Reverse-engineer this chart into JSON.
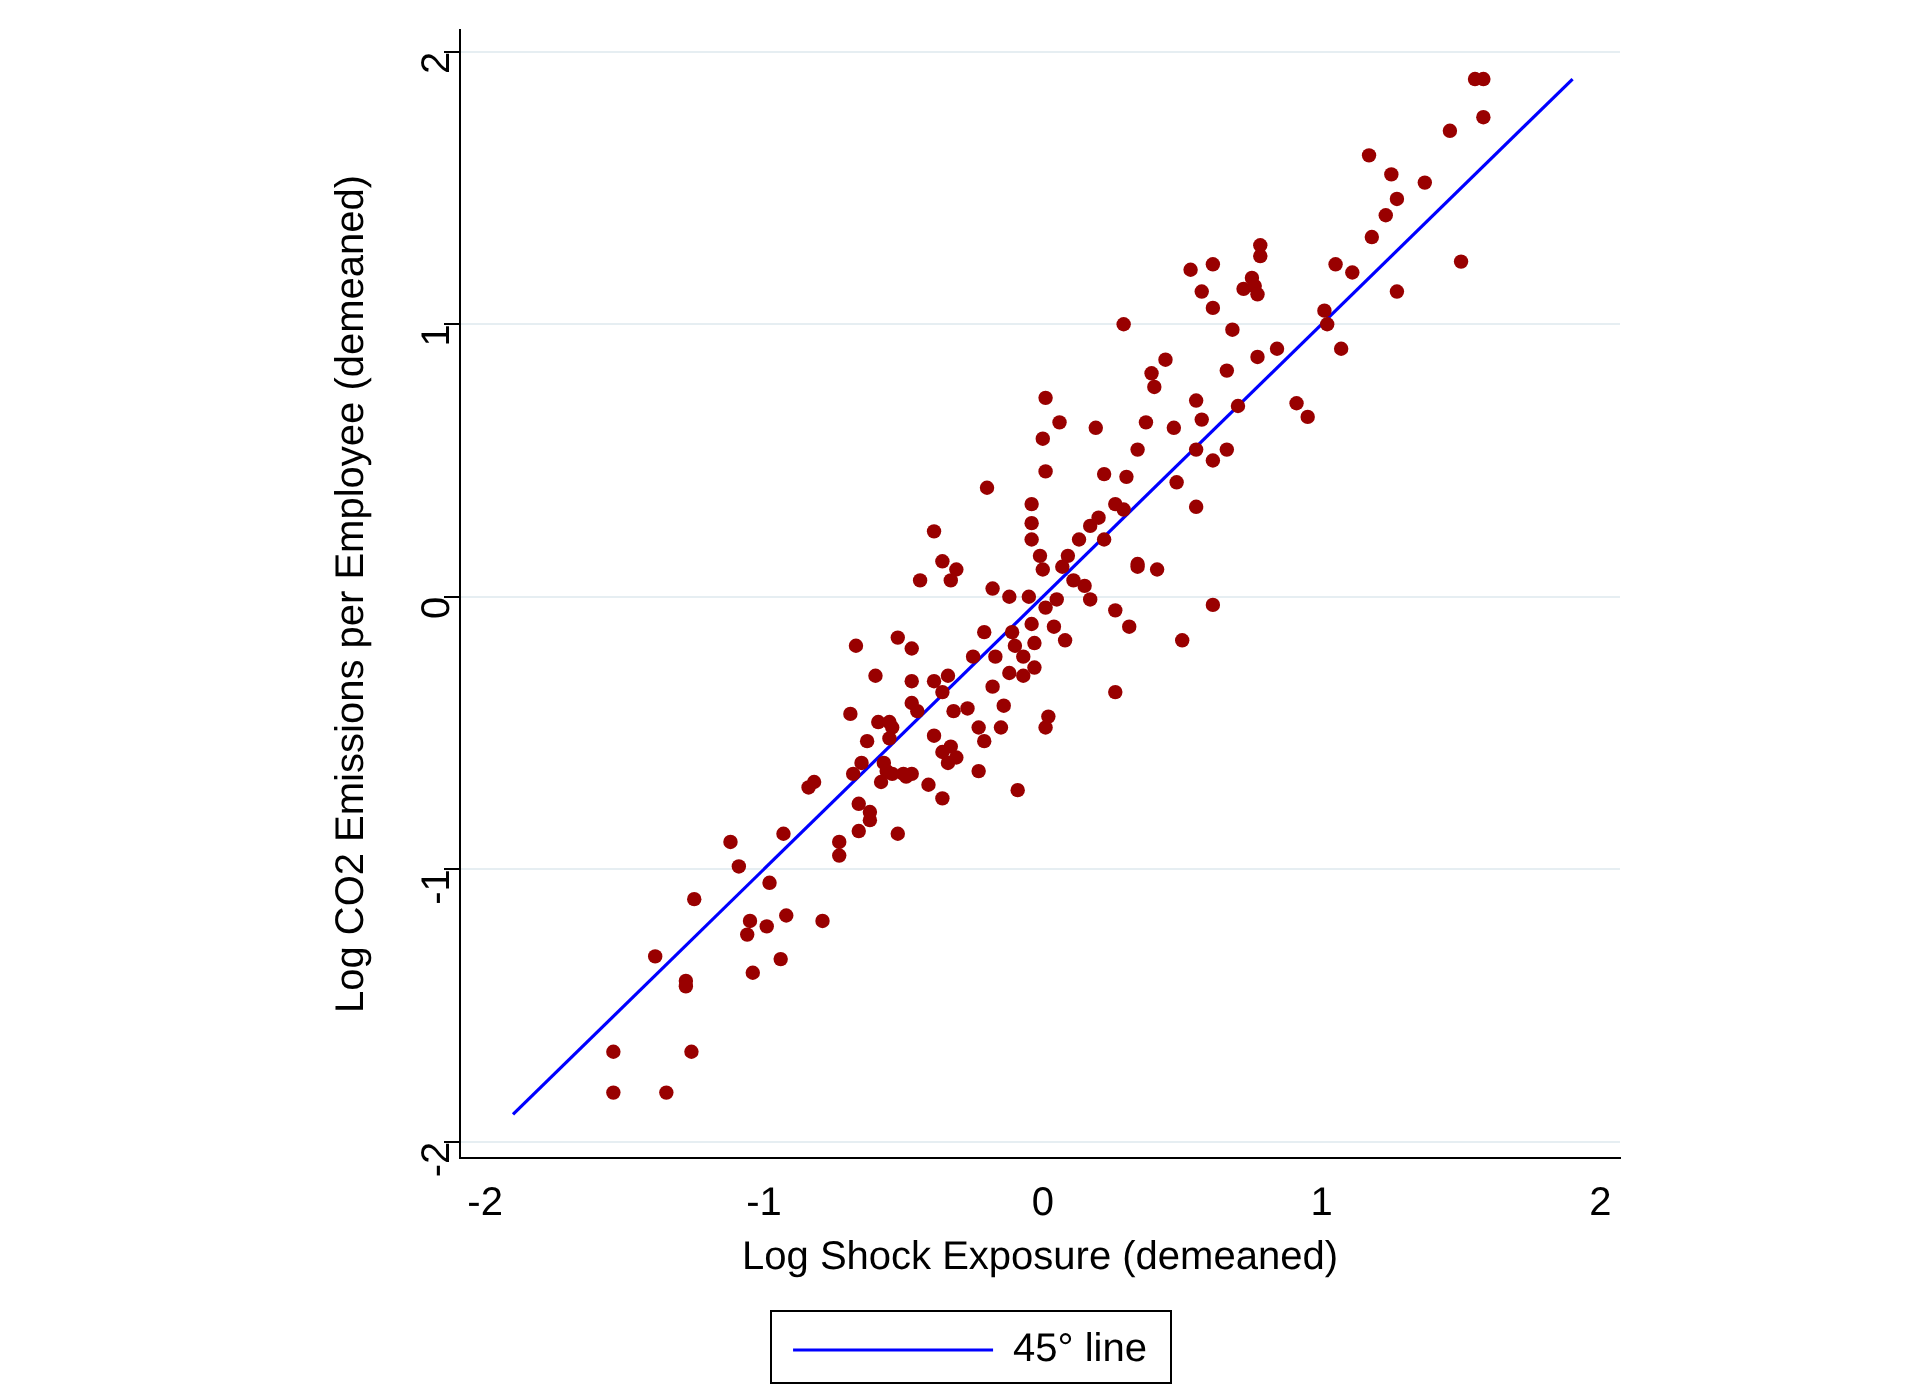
{
  "chart_data": {
    "type": "scatter",
    "xlabel": "Log Shock Exposure (demeaned)",
    "ylabel": "Log CO2 Emissions per Employee (demeaned)",
    "xlim": [
      -2.09,
      2.07
    ],
    "ylim": [
      -2.06,
      2.08
    ],
    "xticks": [
      -2,
      -1,
      0,
      1,
      2
    ],
    "yticks": [
      -2,
      -1,
      0,
      1,
      2
    ],
    "grid": "y",
    "legend": "bottom",
    "marker": "circle",
    "series": [
      {
        "color": "#990000",
        "x": [
          -1.54,
          -1.54,
          -1.35,
          -1.26,
          -1.39,
          -1.28,
          -1.28,
          -1.25,
          -1.09,
          -1.12,
          -1.05,
          -1.06,
          -1.04,
          -0.98,
          -0.99,
          -0.92,
          -0.94,
          -0.79,
          -0.93,
          -0.84,
          -0.82,
          -0.73,
          -0.73,
          -0.68,
          -0.66,
          -0.66,
          -0.62,
          -0.62,
          -0.69,
          -0.67,
          -0.63,
          -0.59,
          -0.57,
          -0.54,
          -0.52,
          -0.5,
          -0.47,
          -0.54,
          -0.6,
          -0.52,
          -0.47,
          -0.44,
          -0.39,
          -0.36,
          -0.33,
          -0.31,
          -0.55,
          -0.47,
          -0.47,
          -0.45,
          -0.39,
          -0.34,
          -0.36,
          -0.32,
          -0.27,
          -0.55,
          -0.39,
          -0.36,
          -0.33,
          -0.31,
          -0.34,
          -0.65,
          -0.56,
          -0.49,
          -0.58,
          -0.41,
          -0.36,
          -0.23,
          -0.09,
          -0.23,
          -0.21,
          -0.15,
          0.01,
          0.02,
          -0.25,
          -0.21,
          -0.17,
          -0.14,
          -0.18,
          -0.12,
          -0.11,
          -0.1,
          -0.07,
          -0.07,
          -0.03,
          -0.04,
          -0.03,
          -0.18,
          -0.12,
          -0.05,
          -0.04,
          -0.04,
          -0.04,
          -0.01,
          0.0,
          0.01,
          0.05,
          0.04,
          0.08,
          0.07,
          0.09,
          0.11,
          0.15,
          0.13,
          0.17,
          0.2,
          0.22,
          0.26,
          0.29,
          0.17,
          0.26,
          0.31,
          0.34,
          0.26,
          0.29,
          0.01,
          0.06,
          0.0,
          0.01,
          -0.2,
          0.19,
          0.22,
          0.3,
          0.34,
          0.37,
          0.39,
          0.4,
          0.44,
          0.47,
          0.48,
          0.55,
          0.55,
          0.55,
          0.61,
          0.68,
          0.66,
          0.57,
          0.61,
          0.66,
          0.7,
          0.77,
          0.84,
          0.91,
          0.95,
          1.01,
          1.07,
          0.34,
          0.41,
          0.61,
          0.5,
          1.17,
          1.25,
          1.27,
          1.23,
          1.18,
          1.37,
          1.46,
          1.55,
          1.58,
          1.58,
          1.5,
          1.27,
          1.05,
          1.11,
          1.02,
          0.78,
          0.78,
          0.75,
          0.72,
          0.61,
          0.53,
          0.57,
          0.76,
          0.77
        ],
        "values": [
          -1.67,
          -1.82,
          -1.82,
          -1.67,
          -1.32,
          -1.41,
          -1.43,
          -1.11,
          -0.99,
          -0.9,
          -1.19,
          -1.24,
          -1.38,
          -1.05,
          -1.21,
          -1.17,
          -1.33,
          -1.19,
          -0.87,
          -0.7,
          -0.68,
          -0.9,
          -0.95,
          -0.65,
          -0.86,
          -0.76,
          -0.79,
          -0.82,
          -0.43,
          -0.18,
          -0.53,
          -0.46,
          -0.61,
          -0.65,
          -0.87,
          -0.65,
          -0.65,
          -0.48,
          -0.29,
          -0.15,
          -0.19,
          0.06,
          0.24,
          0.13,
          0.06,
          0.1,
          -0.46,
          -0.31,
          -0.39,
          -0.42,
          -0.31,
          -0.29,
          -0.35,
          -0.42,
          -0.41,
          -0.52,
          -0.51,
          -0.57,
          -0.55,
          -0.59,
          -0.61,
          -0.61,
          -0.64,
          -0.66,
          -0.68,
          -0.69,
          -0.74,
          -0.64,
          -0.71,
          -0.48,
          -0.53,
          -0.48,
          -0.48,
          -0.44,
          -0.22,
          -0.13,
          -0.22,
          -0.4,
          -0.33,
          -0.28,
          -0.13,
          -0.18,
          -0.22,
          -0.29,
          -0.26,
          -0.1,
          -0.17,
          0.03,
          0.0,
          0.0,
          0.34,
          0.27,
          0.21,
          0.15,
          0.1,
          -0.04,
          -0.01,
          -0.11,
          -0.16,
          0.11,
          0.15,
          0.06,
          0.04,
          0.21,
          0.26,
          0.29,
          0.21,
          0.34,
          0.32,
          -0.01,
          -0.05,
          -0.11,
          0.12,
          -0.35,
          1.0,
          0.73,
          0.64,
          0.58,
          0.46,
          0.4,
          0.62,
          0.45,
          0.44,
          0.54,
          0.64,
          0.82,
          0.77,
          0.87,
          0.62,
          0.42,
          0.33,
          0.54,
          0.72,
          1.06,
          0.98,
          0.83,
          0.65,
          0.5,
          0.54,
          0.7,
          0.88,
          0.91,
          0.71,
          0.66,
          1.05,
          0.91,
          0.11,
          0.1,
          -0.03,
          -0.16,
          1.62,
          1.55,
          1.46,
          1.4,
          1.32,
          1.52,
          1.71,
          1.9,
          1.9,
          1.76,
          1.23,
          1.12,
          1.22,
          1.19,
          1.0,
          1.29,
          1.25,
          1.17,
          1.13,
          1.22,
          1.2,
          1.12,
          1.14,
          1.11
        ]
      },
      {
        "type": "line",
        "marker": "none",
        "name": "45° line",
        "color": "#0000ff",
        "x": [
          -1.9,
          1.9
        ],
        "values": [
          -1.9,
          1.9
        ]
      }
    ]
  }
}
